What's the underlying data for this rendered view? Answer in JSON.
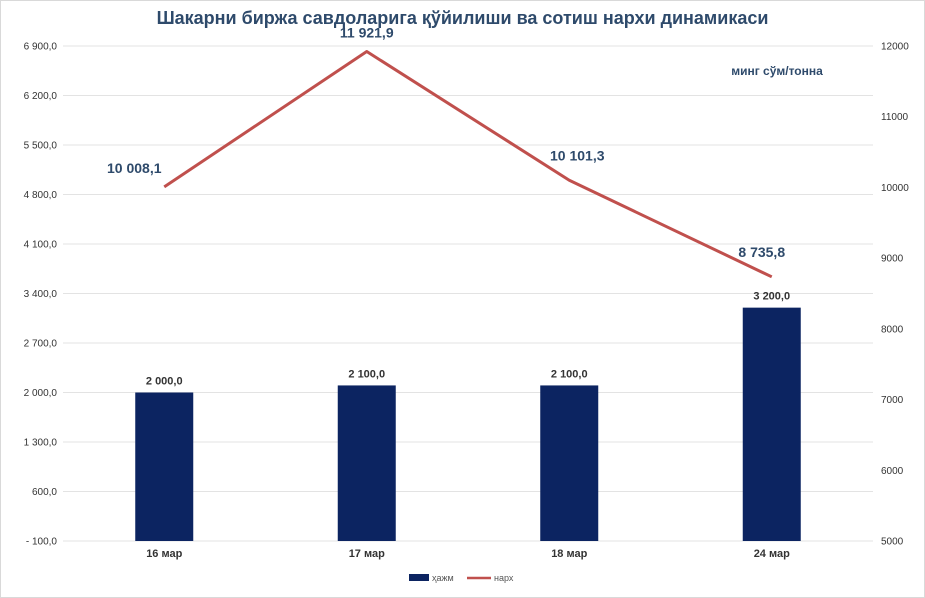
{
  "chart_data": {
    "type": "bar+line",
    "title": "Шакарни биржа савдоларига қўйилиши ва сотиш нархи динамикаси",
    "unit_label": "минг сўм/тонна",
    "categories": [
      "16 мар",
      "17 мар",
      "18 мар",
      "24 мар"
    ],
    "left_axis": {
      "ticks": [
        -100,
        600,
        1300,
        2000,
        2700,
        3400,
        4100,
        4800,
        5500,
        6200,
        6900
      ],
      "tick_labels": [
        "- 100,0",
        "600,0",
        "1 300,0",
        "2 000,0",
        "2 700,0",
        "3 400,0",
        "4 100,0",
        "4 800,0",
        "5 500,0",
        "6 200,0",
        "6 900,0"
      ],
      "ylim": [
        -100,
        6900
      ]
    },
    "right_axis": {
      "ticks": [
        5000,
        6000,
        7000,
        8000,
        9000,
        10000,
        11000,
        12000
      ],
      "tick_labels": [
        "5000",
        "6000",
        "7000",
        "8000",
        "9000",
        "10000",
        "11000",
        "12000"
      ],
      "ylim": [
        5000,
        12000
      ]
    },
    "grid": true,
    "legend_position": "bottom",
    "series": [
      {
        "name": "ҳажм",
        "kind": "bar",
        "axis": "left",
        "color": "#0c2461",
        "values": [
          2000.0,
          2100.0,
          2100.0,
          3200.0
        ],
        "labels": [
          "2 000,0",
          "2 100,0",
          "2 100,0",
          "3 200,0"
        ]
      },
      {
        "name": "нарх",
        "kind": "line",
        "axis": "right",
        "color": "#c0504d",
        "values": [
          10008.1,
          11921.9,
          10101.3,
          8735.8
        ],
        "labels": [
          "10 008,1",
          "11 921,9",
          "10 101,3",
          "8 735,8"
        ]
      }
    ]
  }
}
